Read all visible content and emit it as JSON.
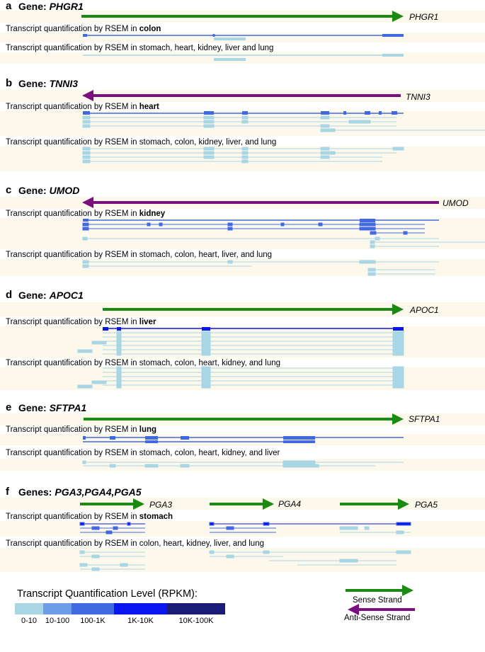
{
  "colors": {
    "sense": "#1a8a12",
    "antisense": "#7b0f7f",
    "band": "#fdf8ec",
    "lvl0": "#a9d6e5",
    "lvl1": "#6e9ce8",
    "lvl2": "#4169e1",
    "lvl3": "#0a16f0",
    "lvl4": "#1b1c78"
  },
  "panels": {
    "a": {
      "letter": "a",
      "prefix": "Gene: ",
      "gene": "PHGR1",
      "cap1_pre": "Transcript quantification by RSEM in ",
      "cap1_tissue": "colon",
      "cap2": "Transcript quantification by RSEM in stomach, heart, kidney, liver and lung"
    },
    "b": {
      "letter": "b",
      "prefix": "Gene: ",
      "gene": "TNNI3",
      "cap1_pre": "Transcript quantification by RSEM in ",
      "cap1_tissue": "heart",
      "cap2": "Transcript quantification by RSEM in stomach, colon, kidney, liver, and lung"
    },
    "c": {
      "letter": "c",
      "prefix": "Gene: ",
      "gene": "UMOD",
      "cap1_pre": "Transcript quantification by RSEM in ",
      "cap1_tissue": "kidney",
      "cap2": "Transcript quantification by RSEM in stomach, colon, heart, liver, and lung"
    },
    "d": {
      "letter": "d",
      "prefix": "Gene: ",
      "gene": "APOC1",
      "cap1_pre": "Transcript quantification by RSEM in ",
      "cap1_tissue": "liver",
      "cap2": "Transcript quantification by RSEM in stomach, colon, heart, kidney, and lung"
    },
    "e": {
      "letter": "e",
      "prefix": "Gene: ",
      "gene": "SFTPA1",
      "cap1_pre": "Transcript quantification by RSEM in ",
      "cap1_tissue": "lung",
      "cap2": "Transcript quantification by RSEM in stomach, colon, heart, kidney, and liver"
    },
    "f": {
      "letter": "f",
      "prefix": "Genes: ",
      "gene": "PGA3,PGA4,PGA5",
      "cap1_pre": "Transcript quantification by RSEM in ",
      "cap1_tissue": "stomach",
      "cap2": "Transcript quantification by RSEM in colon, heart, kidney, liver, and lung",
      "g1": "PGA3",
      "g2": "PGA4",
      "g3": "PGA5"
    }
  },
  "legend": {
    "title": "Transcript Quantification Level (RPKM):",
    "levels": [
      "0-10",
      "10-100",
      "100-1K",
      "1K-10K",
      "10K-100K"
    ],
    "sense_label": "Sense Strand",
    "antisense_label": "Anti-Sense Strand"
  }
}
